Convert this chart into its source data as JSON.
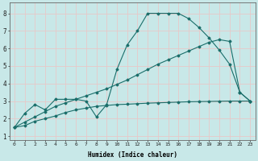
{
  "xlabel": "Humidex (Indice chaleur)",
  "background_color": "#c8e8e8",
  "grid_color": "#e8c8c8",
  "line_color": "#1a6e6a",
  "xlim": [
    -0.5,
    23.5
  ],
  "ylim": [
    0.8,
    8.6
  ],
  "xticks": [
    0,
    1,
    2,
    3,
    4,
    5,
    6,
    7,
    8,
    9,
    10,
    11,
    12,
    13,
    14,
    15,
    16,
    17,
    18,
    19,
    20,
    21,
    22,
    23
  ],
  "yticks": [
    1,
    2,
    3,
    4,
    5,
    6,
    7,
    8
  ],
  "curve1_x": [
    0,
    1,
    2,
    3,
    4,
    5,
    6,
    7,
    8,
    9,
    10,
    11,
    12,
    13,
    14,
    15,
    16,
    17,
    18,
    19,
    20,
    21,
    22,
    23
  ],
  "curve1_y": [
    1.5,
    2.3,
    2.8,
    2.5,
    3.1,
    3.1,
    3.1,
    3.0,
    2.1,
    2.8,
    4.8,
    6.2,
    7.0,
    8.0,
    8.0,
    8.0,
    8.0,
    7.7,
    7.2,
    6.6,
    5.9,
    5.1,
    3.5,
    3.0
  ],
  "curve2_x": [
    0,
    1,
    2,
    3,
    4,
    5,
    6,
    7,
    8,
    9,
    10,
    11,
    12,
    13,
    14,
    15,
    16,
    17,
    18,
    19,
    20,
    21,
    22,
    23
  ],
  "curve2_y": [
    1.5,
    1.8,
    2.1,
    2.4,
    2.7,
    2.9,
    3.1,
    3.3,
    3.5,
    3.7,
    3.95,
    4.2,
    4.5,
    4.8,
    5.1,
    5.35,
    5.6,
    5.85,
    6.1,
    6.35,
    6.5,
    6.4,
    3.5,
    3.0
  ],
  "curve3_x": [
    0,
    1,
    2,
    3,
    4,
    5,
    6,
    7,
    8,
    9,
    10,
    11,
    12,
    13,
    14,
    15,
    16,
    17,
    18,
    19,
    20,
    21,
    22,
    23
  ],
  "curve3_y": [
    1.5,
    1.6,
    1.85,
    2.0,
    2.15,
    2.35,
    2.5,
    2.6,
    2.7,
    2.75,
    2.8,
    2.82,
    2.85,
    2.88,
    2.9,
    2.92,
    2.94,
    2.96,
    2.97,
    2.98,
    2.99,
    3.0,
    3.0,
    3.0
  ]
}
